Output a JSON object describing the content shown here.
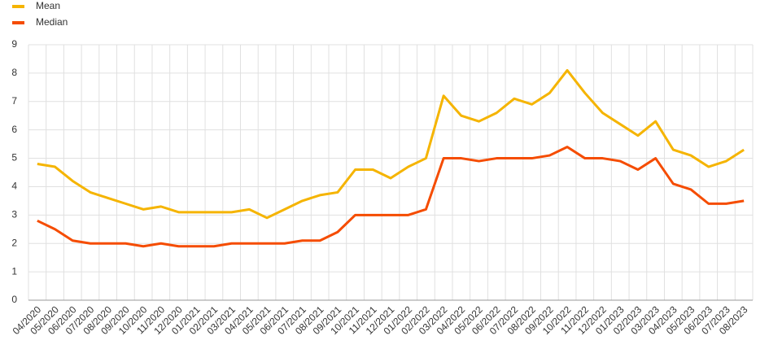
{
  "chart_data": {
    "type": "line",
    "categories": [
      "04/2020",
      "05/2020",
      "06/2020",
      "07/2020",
      "08/2020",
      "09/2020",
      "10/2020",
      "11/2020",
      "12/2020",
      "01/2021",
      "02/2021",
      "03/2021",
      "04/2021",
      "05/2021",
      "06/2021",
      "07/2021",
      "08/2021",
      "09/2021",
      "10/2021",
      "11/2021",
      "12/2021",
      "01/2022",
      "02/2022",
      "03/2022",
      "04/2022",
      "05/2022",
      "06/2022",
      "07/2022",
      "08/2022",
      "09/2022",
      "10/2022",
      "11/2022",
      "12/2022",
      "01/2023",
      "02/2023",
      "03/2023",
      "04/2023",
      "05/2023",
      "06/2023",
      "07/2023",
      "08/2023"
    ],
    "series": [
      {
        "name": "Mean",
        "color": "#f5b400",
        "values": [
          4.8,
          4.7,
          4.2,
          3.8,
          3.6,
          3.4,
          3.2,
          3.3,
          3.1,
          3.1,
          3.1,
          3.1,
          3.2,
          2.9,
          3.2,
          3.5,
          3.7,
          3.8,
          4.6,
          4.6,
          4.3,
          4.7,
          5.0,
          7.2,
          6.5,
          6.3,
          6.6,
          7.1,
          6.9,
          7.3,
          8.1,
          7.3,
          6.6,
          6.2,
          5.8,
          6.3,
          5.3,
          5.1,
          4.7,
          4.9,
          5.3
        ]
      },
      {
        "name": "Median",
        "color": "#f54c00",
        "values": [
          2.8,
          2.5,
          2.1,
          2.0,
          2.0,
          2.0,
          1.9,
          2.0,
          1.9,
          1.9,
          1.9,
          2.0,
          2.0,
          2.0,
          2.0,
          2.1,
          2.1,
          2.4,
          3.0,
          3.0,
          3.0,
          3.0,
          3.2,
          5.0,
          5.0,
          4.9,
          5.0,
          5.0,
          5.0,
          5.1,
          5.4,
          5.0,
          5.0,
          4.9,
          4.6,
          5.0,
          4.1,
          3.9,
          3.4,
          3.4,
          3.5
        ]
      }
    ],
    "ylim": [
      0,
      9
    ],
    "yticks": [
      0,
      1,
      2,
      3,
      4,
      5,
      6,
      7,
      8,
      9
    ],
    "grid": true,
    "legend": "top-left"
  }
}
